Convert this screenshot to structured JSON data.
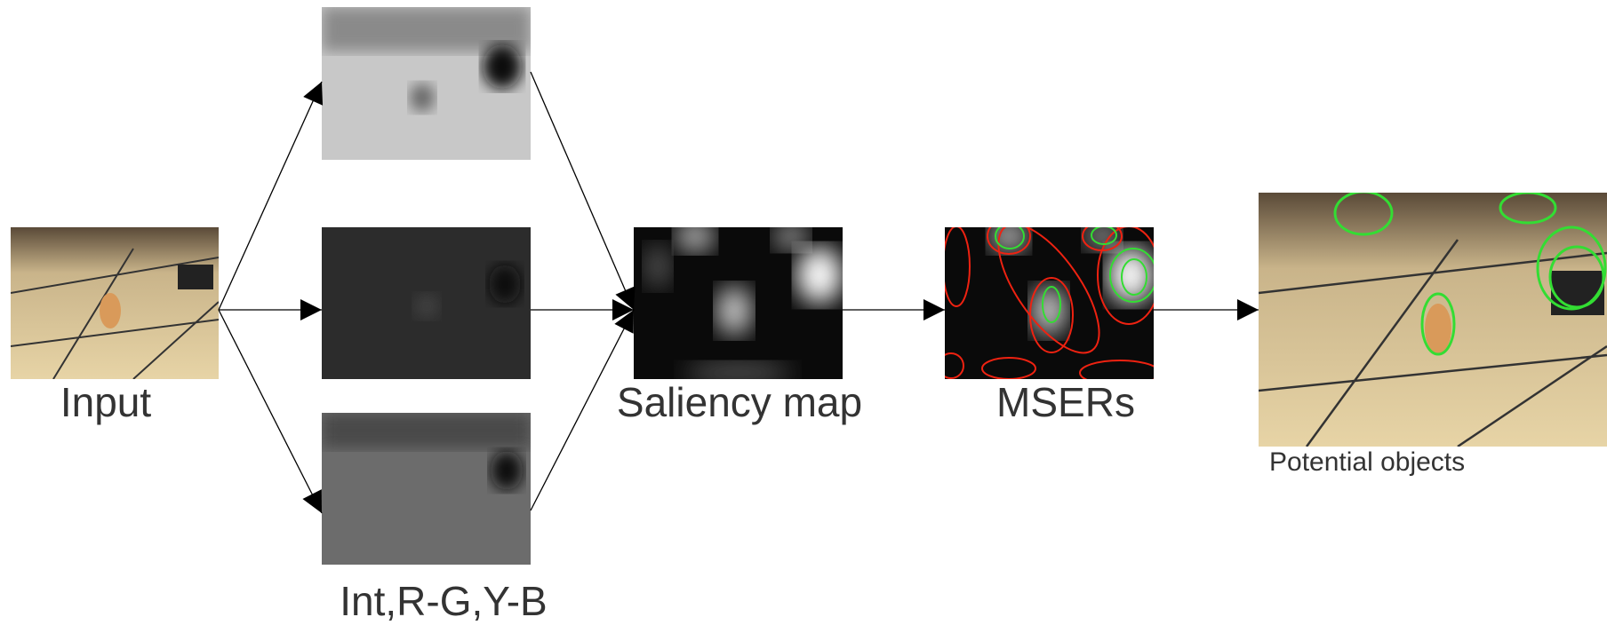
{
  "labels": {
    "input": "Input",
    "channels": "Int,R-G,Y-B",
    "saliency": "Saliency map",
    "msers": "MSERs",
    "output": "Potential objects"
  }
}
